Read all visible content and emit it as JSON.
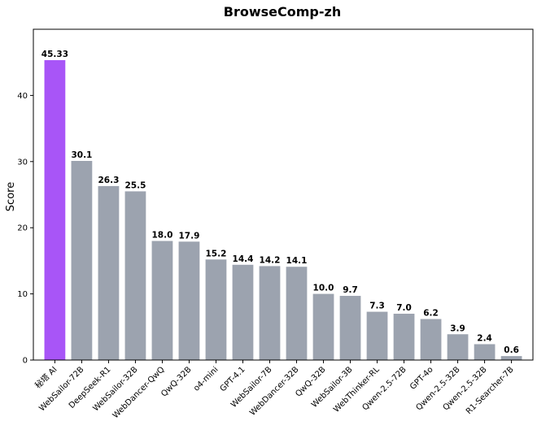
{
  "chart_data": {
    "type": "bar",
    "title": "BrowseComp-zh",
    "xlabel": "",
    "ylabel": "Score",
    "ylim": [
      0,
      50
    ],
    "yticks": [
      0,
      10,
      20,
      30,
      40
    ],
    "grid": false,
    "legend": "none",
    "categories": [
      "秘塔 AI",
      "WebSailor-72B",
      "DeepSeek-R1",
      "WebSailor-32B",
      "WebDancer-QwQ",
      "QwQ-32B",
      "o4-mini",
      "GPT-4.1",
      "WebSailor-7B",
      "WebDancer-32B",
      "QwQ-32B",
      "WebSailor-3B",
      "WebThinker-RL",
      "Qwen-2.5-72B",
      "GPT-4o",
      "Qwen-2.5-32B",
      "Qwen-2.5-32B",
      "R1-Searcher-7B"
    ],
    "values": [
      45.33,
      30.1,
      26.3,
      25.5,
      18.0,
      17.9,
      15.2,
      14.4,
      14.2,
      14.1,
      10.0,
      9.7,
      7.3,
      7.0,
      6.2,
      3.9,
      2.4,
      0.6
    ],
    "value_labels": [
      "45.33",
      "30.1",
      "26.3",
      "25.5",
      "18.0",
      "17.9",
      "15.2",
      "14.4",
      "14.2",
      "14.1",
      "10.0",
      "9.7",
      "7.3",
      "7.0",
      "6.2",
      "3.9",
      "2.4",
      "0.6"
    ],
    "colors": {
      "highlight": "#a855f7",
      "default": "#9ca3af"
    },
    "highlight_index": 0
  }
}
